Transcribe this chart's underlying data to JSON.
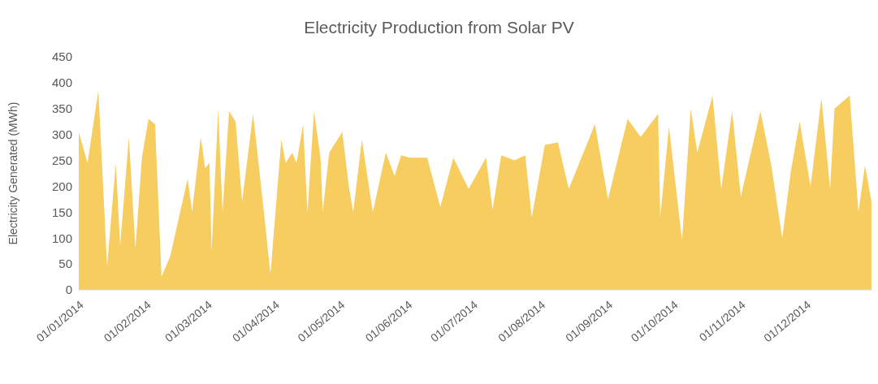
{
  "chart_data": {
    "type": "area",
    "title": "Electricity Production from Solar PV",
    "ylabel": "Electricity  Generated  (MWh)",
    "x": [
      "2014-01-01",
      "2014-01-05",
      "2014-01-10",
      "2014-01-14",
      "2014-01-18",
      "2014-01-20",
      "2014-01-24",
      "2014-01-27",
      "2014-01-30",
      "2014-02-02",
      "2014-02-05",
      "2014-02-08",
      "2014-02-12",
      "2014-02-20",
      "2014-02-22",
      "2014-02-26",
      "2014-02-28",
      "2014-03-02",
      "2014-03-03",
      "2014-03-06",
      "2014-03-08",
      "2014-03-11",
      "2014-03-14",
      "2014-03-17",
      "2014-03-22",
      "2014-03-24",
      "2014-03-27",
      "2014-03-30",
      "2014-04-04",
      "2014-04-06",
      "2014-04-09",
      "2014-04-11",
      "2014-04-14",
      "2014-04-16",
      "2014-04-19",
      "2014-04-22",
      "2014-04-23",
      "2014-04-26",
      "2014-05-02",
      "2014-05-05",
      "2014-05-07",
      "2014-05-11",
      "2014-05-16",
      "2014-05-22",
      "2014-05-26",
      "2014-05-29",
      "2014-06-02",
      "2014-06-10",
      "2014-06-16",
      "2014-06-22",
      "2014-06-29",
      "2014-07-07",
      "2014-07-10",
      "2014-07-14",
      "2014-07-20",
      "2014-07-25",
      "2014-07-28",
      "2014-08-03",
      "2014-08-09",
      "2014-08-14",
      "2014-08-26",
      "2014-09-01",
      "2014-09-10",
      "2014-09-16",
      "2014-09-24",
      "2014-09-25",
      "2014-09-29",
      "2014-10-05",
      "2014-10-09",
      "2014-10-12",
      "2014-10-19",
      "2014-10-23",
      "2014-10-28",
      "2014-11-01",
      "2014-11-10",
      "2014-11-15",
      "2014-11-20",
      "2014-11-24",
      "2014-11-28",
      "2014-12-03",
      "2014-12-08",
      "2014-12-12",
      "2014-12-14",
      "2014-12-21",
      "2014-12-25",
      "2014-12-28",
      "2014-12-31"
    ],
    "series": [
      {
        "color": "#f6cd5e",
        "values": [
          305,
          245,
          385,
          45,
          245,
          85,
          295,
          80,
          255,
          330,
          320,
          25,
          65,
          215,
          150,
          295,
          235,
          245,
          75,
          350,
          150,
          345,
          325,
          170,
          340,
          265,
          150,
          30,
          290,
          245,
          265,
          245,
          320,
          150,
          345,
          255,
          150,
          265,
          305,
          200,
          150,
          290,
          150,
          265,
          220,
          260,
          255,
          255,
          160,
          255,
          195,
          255,
          155,
          260,
          250,
          260,
          140,
          280,
          285,
          195,
          320,
          175,
          330,
          295,
          340,
          140,
          315,
          95,
          350,
          265,
          375,
          195,
          345,
          180,
          345,
          240,
          100,
          230,
          325,
          200,
          370,
          195,
          350,
          375,
          150,
          240,
          170
        ]
      }
    ],
    "xlim": [
      "2014-01-01",
      "2014-12-31"
    ],
    "xticks": [
      {
        "value": "2014-01-01",
        "label": "01/01/2014"
      },
      {
        "value": "2014-02-01",
        "label": "01/02/2014"
      },
      {
        "value": "2014-03-01",
        "label": "01/03/2014"
      },
      {
        "value": "2014-04-01",
        "label": "01/04/2014"
      },
      {
        "value": "2014-05-01",
        "label": "01/05/2014"
      },
      {
        "value": "2014-06-01",
        "label": "01/06/2014"
      },
      {
        "value": "2014-07-01",
        "label": "01/07/2014"
      },
      {
        "value": "2014-08-01",
        "label": "01/08/2014"
      },
      {
        "value": "2014-09-01",
        "label": "01/09/2014"
      },
      {
        "value": "2014-10-01",
        "label": "01/10/2014"
      },
      {
        "value": "2014-11-01",
        "label": "01/11/2014"
      },
      {
        "value": "2014-12-01",
        "label": "01/12/2014"
      }
    ],
    "ylim": [
      0,
      450
    ],
    "yticks": [
      0,
      50,
      100,
      150,
      200,
      250,
      300,
      350,
      400,
      450
    ],
    "grid": false,
    "legend": false
  }
}
